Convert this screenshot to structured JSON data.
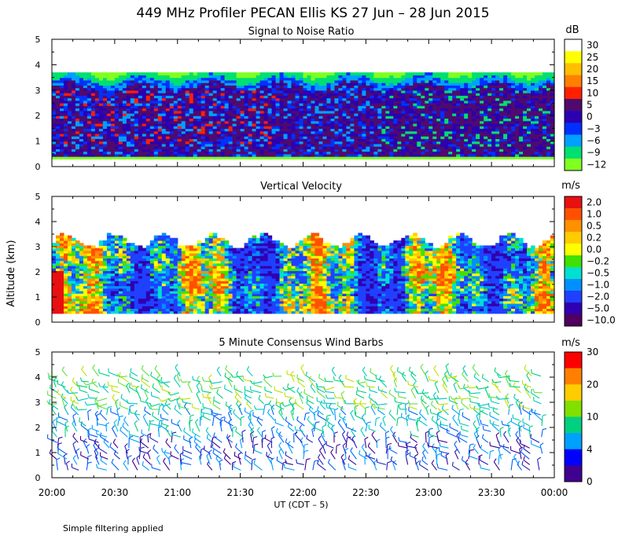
{
  "title": "449 MHz Profiler PECAN Ellis KS 27 Jun – 28 Jun 2015",
  "ylabel": "Altitude (km)",
  "xlabel": "UT  (CDT – 5)",
  "footer": "Simple filtering applied",
  "x_ticks": [
    "20:00",
    "20:30",
    "21:00",
    "21:30",
    "22:00",
    "22:30",
    "23:00",
    "23:30",
    "00:00"
  ],
  "y_ticks": [
    "0",
    "1",
    "2",
    "3",
    "4",
    "5"
  ],
  "chart_data": [
    {
      "type": "heatmap",
      "title": "Signal to Noise Ratio",
      "unit": "dB",
      "xlim": [
        "20:00",
        "00:00"
      ],
      "ylim": [
        0,
        5
      ],
      "colorbar_labels": [
        "30",
        "25",
        "20",
        "15",
        "10",
        "5",
        "0",
        "−3",
        "−6",
        "−9",
        "−12"
      ],
      "colorbar_colors": [
        "#ffffff",
        "#ffff00",
        "#ffbf00",
        "#ff8000",
        "#ff2000",
        "#500a6e",
        "#2b00b0",
        "#0030ff",
        "#00a0ff",
        "#00e070",
        "#80ff20"
      ],
      "data_altitude_range_km": [
        0.3,
        3.6
      ],
      "description_values": {
        "low_layer_0_3km_dB": "-3 to 5",
        "top_edge_3.2_3.8km_dB": "-9 to -12",
        "patches_dB": "10"
      }
    },
    {
      "type": "heatmap",
      "title": "Vertical Velocity",
      "unit": "m/s",
      "xlim": [
        "20:00",
        "00:00"
      ],
      "ylim": [
        0,
        5
      ],
      "colorbar_labels": [
        "2.0",
        "1.0",
        "0.5",
        "0.2",
        "0.0",
        "−0.2",
        "−0.5",
        "−1.0",
        "−2.0",
        "−5.0",
        "−10.0"
      ],
      "colorbar_colors": [
        "#e81010",
        "#ff5000",
        "#ff9000",
        "#ffcc00",
        "#ffff00",
        "#40e000",
        "#00e0d0",
        "#0090ff",
        "#2040ff",
        "#3000b0",
        "#500060"
      ],
      "data_altitude_range_km": [
        0.3,
        3.5
      ]
    },
    {
      "type": "scatter",
      "title": "5 Minute Consensus Wind Barbs",
      "unit": "m/s",
      "xlim": [
        "20:00",
        "00:00"
      ],
      "ylim": [
        0,
        5
      ],
      "colorbar_labels": [
        "30",
        "20",
        "10",
        "4",
        "0"
      ],
      "colorbar_colors": [
        "#ff0000",
        "#ff8000",
        "#ffcc00",
        "#80e000",
        "#00d080",
        "#00a0ff",
        "#0000ff",
        "#400090"
      ],
      "data_altitude_range_km": [
        0.2,
        4.2
      ]
    }
  ]
}
